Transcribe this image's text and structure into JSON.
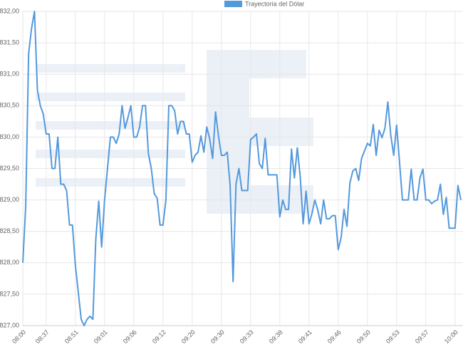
{
  "chart_data": {
    "type": "line",
    "categories": [
      "08:00",
      null,
      null,
      null,
      null,
      null,
      null,
      null,
      "08:37",
      null,
      null,
      null,
      null,
      null,
      null,
      null,
      null,
      null,
      "08:51",
      null,
      null,
      null,
      null,
      null,
      null,
      null,
      null,
      null,
      "09:01",
      null,
      null,
      null,
      null,
      null,
      null,
      null,
      null,
      null,
      "09:06",
      null,
      null,
      null,
      null,
      null,
      null,
      null,
      null,
      null,
      "09:12",
      null,
      null,
      null,
      null,
      null,
      null,
      null,
      null,
      null,
      "09:20",
      null,
      null,
      null,
      null,
      null,
      null,
      null,
      null,
      null,
      "09:30",
      null,
      null,
      null,
      null,
      null,
      null,
      null,
      null,
      null,
      "09:33",
      null,
      null,
      null,
      null,
      null,
      null,
      null,
      null,
      null,
      "09:38",
      null,
      null,
      null,
      null,
      null,
      null,
      null,
      null,
      null,
      "09:41",
      null,
      null,
      null,
      null,
      null,
      null,
      null,
      null,
      null,
      "09:46",
      null,
      null,
      null,
      null,
      null,
      null,
      null,
      null,
      null,
      "09:50",
      null,
      null,
      null,
      null,
      null,
      null,
      null,
      null,
      null,
      "09:53",
      null,
      null,
      null,
      null,
      null,
      null,
      null,
      null,
      null,
      "09:57",
      null,
      null,
      null,
      null,
      null,
      null,
      null,
      null,
      null,
      "10:00",
      null,
      null
    ],
    "series": [
      {
        "name": "Trayectoria del Dólar",
        "color": "#5499dc",
        "values": [
          828.0,
          828.9,
          831.33,
          831.73,
          832.0,
          830.75,
          830.5,
          830.37,
          830.05,
          830.05,
          829.5,
          829.5,
          830.0,
          829.25,
          829.25,
          829.15,
          828.6,
          828.6,
          827.96,
          827.53,
          827.1,
          827.0,
          827.1,
          827.15,
          827.1,
          828.38,
          828.98,
          828.25,
          829.0,
          829.5,
          830.0,
          830.0,
          829.9,
          830.05,
          830.5,
          830.14,
          830.31,
          830.5,
          830.0,
          830.0,
          830.16,
          830.5,
          830.5,
          829.74,
          829.5,
          829.1,
          829.03,
          828.6,
          828.6,
          829.0,
          830.5,
          830.5,
          830.42,
          830.05,
          830.25,
          830.25,
          830.05,
          830.05,
          829.6,
          829.71,
          829.76,
          830.02,
          829.76,
          830.16,
          829.97,
          829.66,
          830.4,
          830.02,
          829.71,
          829.71,
          829.76,
          829.23,
          827.7,
          829.25,
          829.5,
          829.15,
          829.15,
          829.15,
          829.96,
          830.0,
          830.05,
          829.58,
          829.5,
          829.98,
          829.4,
          829.4,
          829.4,
          829.4,
          828.73,
          829.0,
          828.85,
          828.85,
          829.81,
          829.35,
          829.83,
          829.37,
          828.62,
          829.14,
          828.62,
          828.78,
          829.0,
          828.84,
          828.62,
          829.0,
          828.7,
          828.7,
          828.75,
          828.75,
          828.21,
          828.4,
          828.85,
          828.58,
          829.27,
          829.46,
          829.5,
          829.31,
          829.66,
          829.78,
          829.9,
          829.86,
          830.2,
          829.71,
          830.11,
          829.99,
          830.14,
          830.56,
          830.03,
          829.71,
          830.19,
          829.6,
          829.0,
          829.0,
          829.0,
          829.49,
          829.0,
          829.0,
          829.35,
          829.49,
          829.0,
          829.0,
          828.94,
          828.98,
          829.0,
          829.25,
          828.77,
          829.04,
          828.55,
          828.55,
          828.55,
          829.23,
          829.0
        ]
      }
    ],
    "ylim": [
      827,
      832
    ],
    "yticks": [
      {
        "value": 827,
        "label": "$827,00"
      },
      {
        "value": 827.5,
        "label": "$827,50"
      },
      {
        "value": 828,
        "label": "$828,00"
      },
      {
        "value": 828.5,
        "label": "$828,50"
      },
      {
        "value": 829,
        "label": "$829,00"
      },
      {
        "value": 829.5,
        "label": "$829,50"
      },
      {
        "value": 830,
        "label": "$830,00"
      },
      {
        "value": 830.5,
        "label": "$830,50"
      },
      {
        "value": 831,
        "label": "$831,00"
      },
      {
        "value": 831.5,
        "label": "$831,50"
      },
      {
        "value": 832,
        "label": "$832,00"
      }
    ],
    "grid": true
  }
}
